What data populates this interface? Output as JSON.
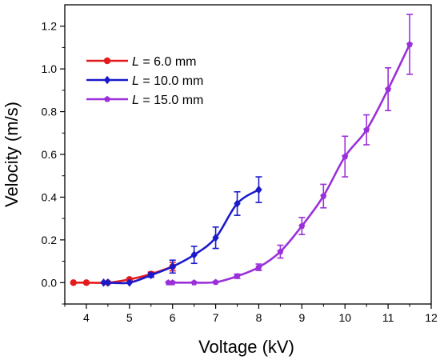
{
  "chart_data": {
    "type": "line",
    "title": "",
    "xlabel": "Voltage (kV)",
    "ylabel": "Velocity (m/s)",
    "xlim": [
      3.5,
      12
    ],
    "ylim": [
      -0.1,
      1.3
    ],
    "xticks": [
      "4",
      "5",
      "6",
      "7",
      "8",
      "9",
      "10",
      "11",
      "12"
    ],
    "yticks": [
      "0.0",
      "0.2",
      "0.4",
      "0.6",
      "0.8",
      "1.0",
      "1.2"
    ],
    "grid": false,
    "legend_position": "top-left",
    "series": [
      {
        "name": "L = 6.0 mm",
        "label_italic": "L",
        "label_rest": " = 6.0 mm",
        "color": "#e41a1c",
        "marker": "circle",
        "x": [
          3.7,
          4.0,
          4.5,
          5.0,
          5.5,
          6.0
        ],
        "y": [
          0.0,
          0.0,
          0.0,
          0.015,
          0.04,
          0.075
        ],
        "err": [
          0.0,
          0.0,
          0.0,
          0.005,
          0.01,
          0.02
        ]
      },
      {
        "name": "L = 10.0 mm",
        "label_italic": "L",
        "label_rest": " = 10.0 mm",
        "color": "#1a1acc",
        "marker": "diamond",
        "x": [
          4.4,
          4.5,
          5.0,
          5.5,
          6.0,
          6.5,
          7.0,
          7.5,
          8.0
        ],
        "y": [
          0.0,
          0.0,
          0.0,
          0.035,
          0.075,
          0.13,
          0.21,
          0.37,
          0.435
        ],
        "err": [
          0.0,
          0.0,
          0.0,
          0.01,
          0.03,
          0.04,
          0.05,
          0.055,
          0.06
        ]
      },
      {
        "name": "L = 15.0 mm",
        "label_italic": "L",
        "label_rest": " = 15.0 mm",
        "color": "#9b30d9",
        "marker": "pentagon",
        "x": [
          5.9,
          6.0,
          6.5,
          7.0,
          7.5,
          8.0,
          8.5,
          9.0,
          9.5,
          10.0,
          10.5,
          11.0,
          11.5
        ],
        "y": [
          0.0,
          0.0,
          0.0,
          0.002,
          0.03,
          0.072,
          0.145,
          0.265,
          0.405,
          0.59,
          0.715,
          0.905,
          1.115
        ],
        "err": [
          0.0,
          0.0,
          0.0,
          0.002,
          0.01,
          0.015,
          0.03,
          0.04,
          0.055,
          0.095,
          0.07,
          0.1,
          0.14
        ]
      }
    ]
  }
}
